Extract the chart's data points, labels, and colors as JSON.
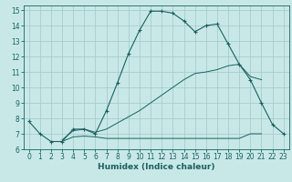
{
  "xlabel": "Humidex (Indice chaleur)",
  "bg_color": "#c8e8e8",
  "grid_color": "#a8cccc",
  "line_color": "#1a6060",
  "xlim": [
    -0.5,
    23.5
  ],
  "ylim": [
    6.0,
    15.3
  ],
  "yticks": [
    6,
    7,
    8,
    9,
    10,
    11,
    12,
    13,
    14,
    15
  ],
  "xticks": [
    0,
    1,
    2,
    3,
    4,
    5,
    6,
    7,
    8,
    9,
    10,
    11,
    12,
    13,
    14,
    15,
    16,
    17,
    18,
    19,
    20,
    21,
    22,
    23
  ],
  "curve1_x": [
    0,
    1,
    2,
    3,
    4,
    5,
    6,
    7,
    8,
    9,
    10,
    11,
    12,
    13,
    14,
    15,
    16,
    17,
    18,
    19,
    20,
    21,
    22,
    23
  ],
  "curve1_y": [
    7.8,
    7.0,
    6.5,
    6.5,
    7.3,
    7.3,
    7.0,
    8.5,
    10.3,
    12.2,
    13.7,
    14.93,
    14.93,
    14.8,
    14.3,
    13.6,
    14.0,
    14.1,
    12.8,
    11.5,
    10.5,
    9.0,
    7.6,
    7.0
  ],
  "curve2_x": [
    3,
    4,
    5,
    6,
    7,
    8,
    9,
    10,
    11,
    12,
    13,
    14,
    15,
    16,
    17,
    18,
    19,
    20,
    21
  ],
  "curve2_y": [
    6.6,
    7.2,
    7.3,
    7.1,
    7.3,
    7.7,
    8.1,
    8.5,
    9.0,
    9.5,
    10.0,
    10.5,
    10.9,
    11.0,
    11.15,
    11.4,
    11.5,
    10.7,
    10.5
  ],
  "curve3_x": [
    3,
    4,
    5,
    6,
    7,
    8,
    9,
    10,
    11,
    12,
    13,
    14,
    15,
    16,
    17,
    18,
    19,
    20,
    21
  ],
  "curve3_y": [
    6.5,
    6.8,
    6.85,
    6.8,
    6.7,
    6.7,
    6.7,
    6.7,
    6.7,
    6.7,
    6.7,
    6.7,
    6.7,
    6.7,
    6.7,
    6.7,
    6.7,
    7.0,
    7.0
  ]
}
